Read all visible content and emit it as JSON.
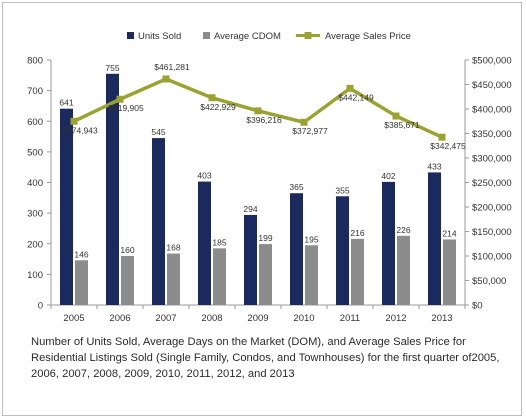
{
  "chart_data": {
    "type": "bar",
    "categories": [
      "2005",
      "2006",
      "2007",
      "2008",
      "2009",
      "2010",
      "2011",
      "2012",
      "2013"
    ],
    "series": [
      {
        "name": "Units Sold",
        "type": "bar",
        "axis": "left",
        "color": "#1a2a5e",
        "values": [
          641,
          755,
          545,
          403,
          294,
          365,
          355,
          402,
          433
        ],
        "labels": [
          "641",
          "755",
          "545",
          "403",
          "294",
          "365",
          "355",
          "402",
          "433"
        ]
      },
      {
        "name": "Average CDOM",
        "type": "bar",
        "axis": "left",
        "color": "#8c8c8c",
        "values": [
          146,
          160,
          168,
          185,
          199,
          195,
          216,
          226,
          214
        ],
        "labels": [
          "146",
          "160",
          "168",
          "185",
          "199",
          "195",
          "216",
          "226",
          "214"
        ]
      },
      {
        "name": "Average Sales Price",
        "type": "line",
        "axis": "right",
        "color": "#9aa332",
        "values": [
          374943,
          419905,
          461281,
          422929,
          396216,
          372977,
          442149,
          385671,
          342475
        ],
        "labels": [
          "$374,943",
          "$419,905",
          "$461,281",
          "$422,929",
          "$396,216",
          "$372,977",
          "$442,149",
          "$385,671",
          "$342,475"
        ]
      }
    ],
    "y_left": {
      "ylim": [
        0,
        800
      ],
      "ticks": [
        "0",
        "100",
        "200",
        "300",
        "400",
        "500",
        "600",
        "700",
        "800"
      ],
      "tick_values": [
        0,
        100,
        200,
        300,
        400,
        500,
        600,
        700,
        800
      ]
    },
    "y_right": {
      "ylim": [
        0,
        500000
      ],
      "ticks": [
        "$0",
        "$50,000",
        "$100,000",
        "$150,000",
        "$200,000",
        "$250,000",
        "$300,000",
        "$350,000",
        "$400,000",
        "$450,000",
        "$500,000"
      ],
      "tick_values": [
        0,
        50000,
        100000,
        150000,
        200000,
        250000,
        300000,
        350000,
        400000,
        450000,
        500000
      ]
    },
    "legend_position": "top-center",
    "grid": false,
    "caption": "Number of Units Sold, Average Days on the Market (DOM), and Average Sales Price for Residential Listings Sold (Single Family, Condos, and Townhouses) for the first quarter of2005, 2006, 2007, 2008, 2009, 2010, 2011, 2012, and 2013"
  }
}
